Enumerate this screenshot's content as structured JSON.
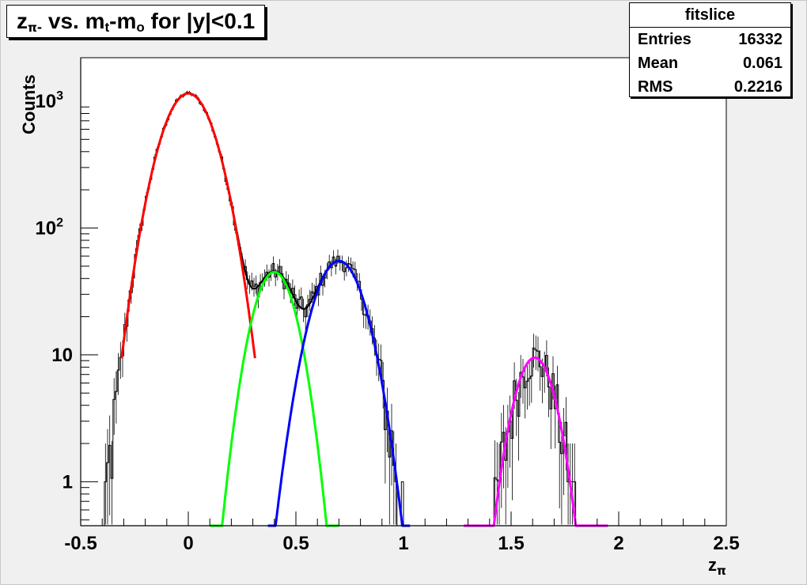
{
  "title": {
    "prefix": "z",
    "sub": "π-",
    "mid": " vs. m",
    "sub2": "t",
    "mid2": "-m",
    "sub3": "o",
    "suffix": " for |y|<0.1"
  },
  "stats": {
    "title": "fitslice",
    "rows": [
      {
        "label": "Entries",
        "value": "16332"
      },
      {
        "label": "Mean",
        "value": "0.061"
      },
      {
        "label": "RMS",
        "value": "0.2216"
      }
    ]
  },
  "chart_data": {
    "type": "line",
    "title": "zπ- vs. mt-mo for |y|<0.1",
    "xlabel_main": "z",
    "xlabel_sub": "π",
    "ylabel": "Counts",
    "xlim": [
      -0.5,
      2.5
    ],
    "ylim": [
      0.45,
      2200
    ],
    "yscale": "log",
    "grid": false,
    "x_ticks": [
      {
        "value": -0.5,
        "label": "-0.5"
      },
      {
        "value": 0,
        "label": "0"
      },
      {
        "value": 0.5,
        "label": "0.5"
      },
      {
        "value": 1,
        "label": "1"
      },
      {
        "value": 1.5,
        "label": "1.5"
      },
      {
        "value": 2,
        "label": "2"
      },
      {
        "value": 2.5,
        "label": "2.5"
      }
    ],
    "y_ticks": [
      {
        "value": 1,
        "label": "1"
      },
      {
        "value": 10,
        "label": "10"
      },
      {
        "value": 100,
        "label": "10",
        "exp": "2"
      },
      {
        "value": 1000,
        "label": "10",
        "exp": "3"
      }
    ],
    "series": [
      {
        "color": "#ff0000",
        "peak": 1150,
        "mean": 0.0,
        "sigma": 0.1,
        "range": [
          -0.31,
          0.31
        ]
      },
      {
        "color": "#00ff00",
        "peak": 45,
        "mean": 0.4,
        "sigma": 0.08,
        "range": [
          0.1,
          0.7
        ]
      },
      {
        "color": "#0000ff",
        "peak": 55,
        "mean": 0.7,
        "sigma": 0.095,
        "range": [
          0.37,
          1.03
        ]
      },
      {
        "color": "#ff00ff",
        "peak": 9.5,
        "mean": 1.61,
        "sigma": 0.077,
        "range": [
          1.28,
          1.95
        ]
      }
    ],
    "histogram": {
      "color": "#000000",
      "bin_width": 0.01,
      "range": [
        -0.5,
        2.5
      ]
    }
  }
}
